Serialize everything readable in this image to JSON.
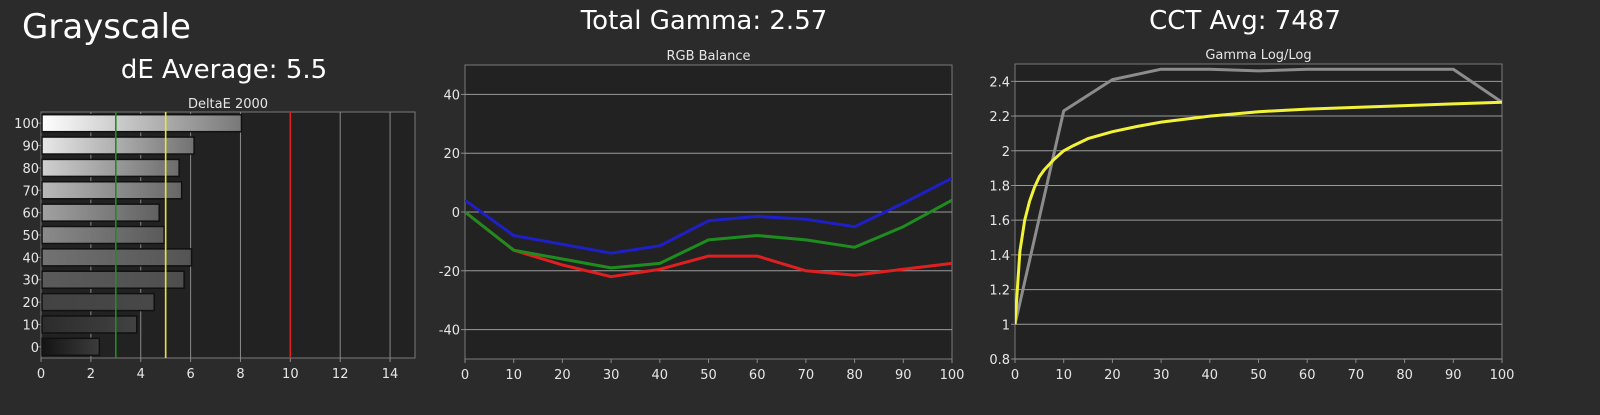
{
  "header": {
    "title": "Grayscale",
    "de_average": "dE Average: 5.5",
    "total_gamma": "Total Gamma: 2.57",
    "cct_avg": "CCT Avg: 7487"
  },
  "chart_data": [
    {
      "type": "bar",
      "orientation": "horizontal",
      "title": "DeltaE 2000",
      "categories": [
        "100",
        "90",
        "80",
        "70",
        "60",
        "50",
        "40",
        "30",
        "20",
        "10",
        "0"
      ],
      "values": [
        8.0,
        6.1,
        5.5,
        5.6,
        4.7,
        4.9,
        6.0,
        5.7,
        4.5,
        3.8,
        2.3
      ],
      "xlim": [
        0,
        15
      ],
      "xticks": [
        0,
        2,
        4,
        6,
        8,
        10,
        12,
        14
      ],
      "reference_lines": [
        {
          "value": 3,
          "color": "#1e8c1e"
        },
        {
          "value": 5,
          "color": "#e6e633"
        },
        {
          "value": 10,
          "color": "#e02020"
        }
      ],
      "grid": true
    },
    {
      "type": "line",
      "title": "RGB Balance",
      "x": [
        0,
        10,
        20,
        30,
        40,
        50,
        60,
        70,
        80,
        90,
        100
      ],
      "series": [
        {
          "color": "#e02020",
          "values": [
            0,
            -13,
            -18,
            -22,
            -19.5,
            -15,
            -15,
            -20,
            -21.5,
            -19.5,
            -17.5
          ]
        },
        {
          "color": "#1e8c1e",
          "values": [
            0,
            -13,
            -16,
            -19,
            -17.5,
            -9.5,
            -8,
            -9.5,
            -12,
            -5,
            4
          ]
        },
        {
          "color": "#1f1fc8",
          "values": [
            4,
            -8,
            -11,
            -14,
            -11.5,
            -3,
            -1.5,
            -2.5,
            -5,
            3,
            11.5
          ]
        }
      ],
      "xlim": [
        0,
        100
      ],
      "ylim": [
        -50,
        50
      ],
      "xticks": [
        0,
        10,
        20,
        30,
        40,
        50,
        60,
        70,
        80,
        90,
        100
      ],
      "yticks": [
        -40,
        -20,
        0,
        20,
        40
      ],
      "grid": true
    },
    {
      "type": "line",
      "title": "Gamma Log/Log",
      "xlim": [
        0,
        100
      ],
      "ylim": [
        0.8,
        2.5
      ],
      "xticks": [
        0,
        10,
        20,
        30,
        40,
        50,
        60,
        70,
        80,
        90,
        100
      ],
      "yticks": [
        0.8,
        1,
        1.2,
        1.4,
        1.6,
        1.8,
        2,
        2.2,
        2.4
      ],
      "series": [
        {
          "color": "#8c8c8c",
          "x": [
            0,
            10,
            20,
            30,
            40,
            50,
            60,
            70,
            80,
            90,
            100
          ],
          "values": [
            1.0,
            2.23,
            2.41,
            2.47,
            2.47,
            2.46,
            2.47,
            2.47,
            2.47,
            2.47,
            2.28
          ]
        },
        {
          "color": "#f2f23a",
          "x": [
            0,
            1,
            2,
            3,
            4,
            5,
            6,
            8,
            10,
            12,
            15,
            20,
            25,
            30,
            40,
            50,
            60,
            70,
            80,
            90,
            100
          ],
          "values": [
            1.0,
            1.42,
            1.6,
            1.71,
            1.79,
            1.85,
            1.89,
            1.95,
            2.0,
            2.03,
            2.07,
            2.11,
            2.14,
            2.165,
            2.2,
            2.225,
            2.24,
            2.25,
            2.26,
            2.27,
            2.28
          ]
        }
      ],
      "grid": true
    }
  ]
}
